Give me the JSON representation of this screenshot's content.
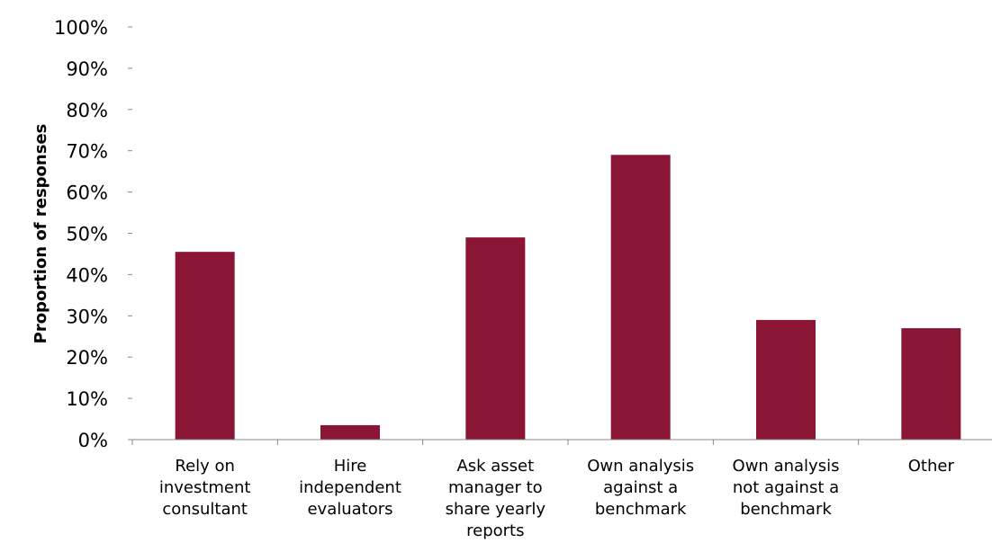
{
  "chart_data": {
    "type": "bar",
    "title": "",
    "xlabel": "",
    "ylabel": "Proportion of responses",
    "ylim": [
      0,
      100
    ],
    "y_ticks": [
      0,
      10,
      20,
      30,
      40,
      50,
      60,
      70,
      80,
      90,
      100
    ],
    "y_tick_suffix": "%",
    "grid": false,
    "legend": "none",
    "bar_color": "#8b1535",
    "categories": [
      [
        "Rely on",
        "investment",
        "consultant"
      ],
      [
        "Hire",
        "independent",
        "evaluators"
      ],
      [
        "Ask asset",
        "manager to",
        "share yearly",
        "reports"
      ],
      [
        "Own analysis",
        "against a",
        "benchmark"
      ],
      [
        "Own analysis",
        "not against a",
        "benchmark"
      ],
      [
        "Other"
      ]
    ],
    "values": [
      45.5,
      3.5,
      49,
      69,
      29,
      27
    ]
  }
}
